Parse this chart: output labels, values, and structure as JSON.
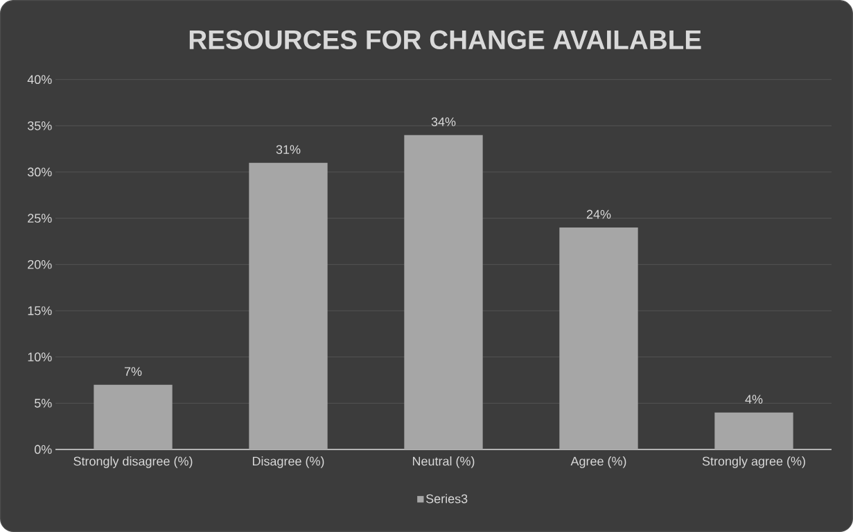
{
  "chart_data": {
    "type": "bar",
    "title": "RESOURCES FOR CHANGE AVAILABLE",
    "categories": [
      "Strongly disagree (%)",
      "Disagree (%)",
      "Neutral (%)",
      "Agree (%)",
      "Strongly agree (%)"
    ],
    "series": [
      {
        "name": "Series3",
        "color": "#a6a6a6",
        "values": [
          7,
          31,
          34,
          24,
          4
        ],
        "value_labels": [
          "7%",
          "31%",
          "34%",
          "24%",
          "4%"
        ]
      }
    ],
    "ylim": [
      0,
      40
    ],
    "yticks": [
      {
        "value": 0,
        "label": "0%"
      },
      {
        "value": 5,
        "label": "5%"
      },
      {
        "value": 10,
        "label": "10%"
      },
      {
        "value": 15,
        "label": "15%"
      },
      {
        "value": 20,
        "label": "20%"
      },
      {
        "value": 25,
        "label": "25%"
      },
      {
        "value": 30,
        "label": "30%"
      },
      {
        "value": 35,
        "label": "35%"
      },
      {
        "value": 40,
        "label": "40%"
      }
    ],
    "grid": "y",
    "legend": "bottom"
  }
}
